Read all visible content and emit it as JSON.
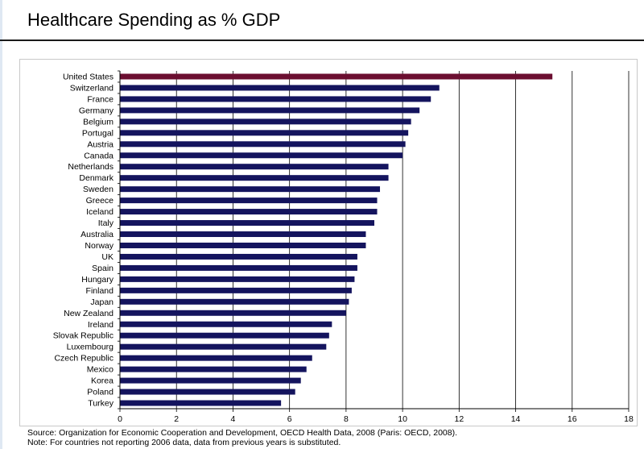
{
  "page": {
    "title": "Healthcare Spending as % GDP"
  },
  "notes": {
    "source": "Source: Organization for Economic Cooperation and Development, OECD Health Data, 2008 (Paris: OECD, 2008).",
    "note": "Note: For countries not reporting 2006 data, data from previous years is substituted."
  },
  "chart_data": {
    "type": "bar",
    "orientation": "horizontal",
    "title": "Healthcare Spending as % GDP",
    "xlabel": "",
    "ylabel": "",
    "xlim": [
      0,
      18
    ],
    "xticks": [
      0,
      2,
      4,
      6,
      8,
      10,
      12,
      14,
      16,
      18
    ],
    "grid": "vertical lines at major ticks",
    "legend": "none",
    "colors": {
      "default_bar": "#14145e",
      "highlight_bar": "#6b0e30"
    },
    "highlight_category": "United States",
    "categories": [
      "United States",
      "Switzerland",
      "France",
      "Germany",
      "Belgium",
      "Portugal",
      "Austria",
      "Canada",
      "Netherlands",
      "Denmark",
      "Sweden",
      "Greece",
      "Iceland",
      "Italy",
      "Australia",
      "Norway",
      "UK",
      "Spain",
      "Hungary",
      "Finland",
      "Japan",
      "New Zealand",
      "Ireland",
      "Slovak Republic",
      "Luxembourg",
      "Czech Republic",
      "Mexico",
      "Korea",
      "Poland",
      "Turkey"
    ],
    "values": [
      15.3,
      11.3,
      11.0,
      10.6,
      10.3,
      10.2,
      10.1,
      10.0,
      9.5,
      9.5,
      9.2,
      9.1,
      9.1,
      9.0,
      8.7,
      8.7,
      8.4,
      8.4,
      8.3,
      8.2,
      8.1,
      8.0,
      7.5,
      7.4,
      7.3,
      6.8,
      6.6,
      6.4,
      6.2,
      5.7
    ]
  }
}
